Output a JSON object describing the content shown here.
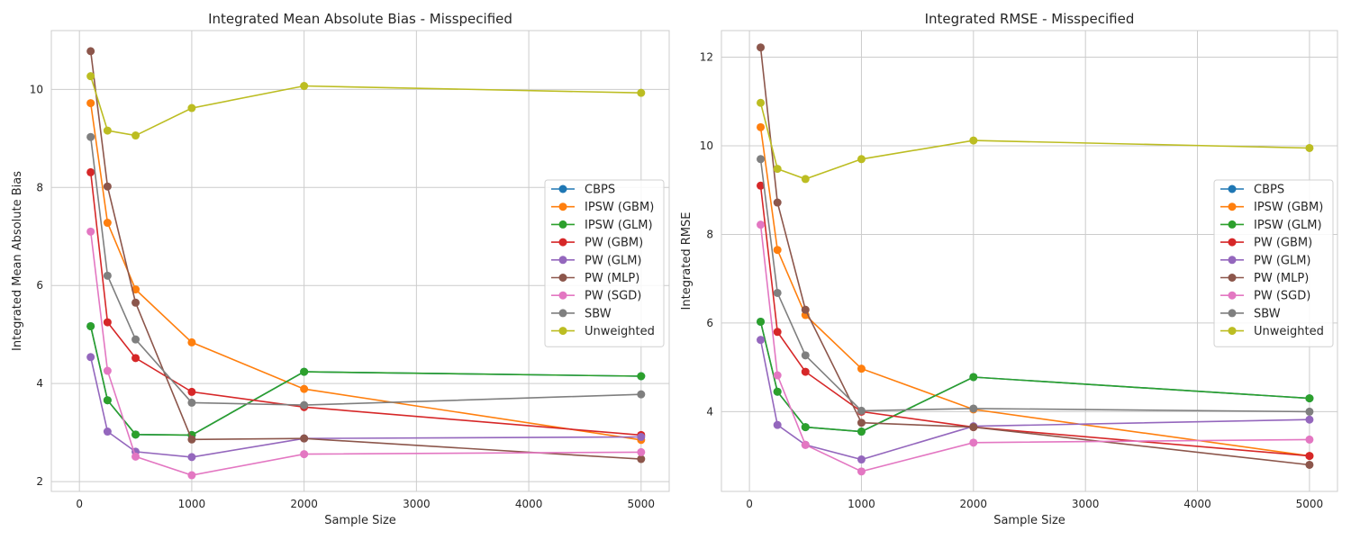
{
  "chart_data": [
    {
      "type": "line",
      "title": "Integrated Mean Absolute Bias - Misspecified",
      "xlabel": "Sample Size",
      "ylabel": "Integrated Mean Absolute Bias",
      "xlim": [
        -250,
        5250
      ],
      "ylim": [
        1.8,
        11.2
      ],
      "xticks": [
        0,
        1000,
        2000,
        3000,
        4000,
        5000
      ],
      "xtick_labels": [
        "0",
        "1000",
        "2000",
        "3000",
        "4000",
        "5000"
      ],
      "yticks": [
        2,
        4,
        6,
        8,
        10
      ],
      "ytick_labels": [
        "2",
        "4",
        "6",
        "8",
        "10"
      ],
      "grid": true,
      "legend_position": "center-right",
      "x": [
        100,
        250,
        500,
        1000,
        2000,
        5000
      ],
      "series": [
        {
          "name": "CBPS",
          "color": "#1f77b4",
          "values": [
            5.17,
            3.66,
            2.96,
            2.95,
            4.24,
            4.15
          ]
        },
        {
          "name": "IPSW (GBM)",
          "color": "#ff7f0e",
          "values": [
            9.72,
            7.28,
            5.92,
            4.84,
            3.89,
            2.85
          ]
        },
        {
          "name": "IPSW (GLM)",
          "color": "#2ca02c",
          "values": [
            5.17,
            3.66,
            2.96,
            2.95,
            4.24,
            4.15
          ]
        },
        {
          "name": "PW (GBM)",
          "color": "#d62728",
          "values": [
            8.31,
            5.25,
            4.52,
            3.83,
            3.52,
            2.95
          ]
        },
        {
          "name": "PW (GLM)",
          "color": "#9467bd",
          "values": [
            4.54,
            3.02,
            2.61,
            2.5,
            2.88,
            2.91
          ]
        },
        {
          "name": "PW (MLP)",
          "color": "#8c564b",
          "values": [
            10.78,
            8.02,
            5.65,
            2.86,
            2.88,
            2.46
          ]
        },
        {
          "name": "PW (SGD)",
          "color": "#e377c2",
          "values": [
            7.1,
            4.26,
            2.51,
            2.13,
            2.56,
            2.6
          ]
        },
        {
          "name": "SBW",
          "color": "#7f7f7f",
          "values": [
            9.03,
            6.2,
            4.9,
            3.61,
            3.56,
            3.78
          ]
        },
        {
          "name": "Unweighted",
          "color": "#bcbd22",
          "values": [
            10.27,
            9.16,
            9.06,
            9.62,
            10.07,
            9.93
          ]
        }
      ]
    },
    {
      "type": "line",
      "title": "Integrated RMSE - Misspecified",
      "xlabel": "Sample Size",
      "ylabel": "Integrated RMSE",
      "xlim": [
        -250,
        5250
      ],
      "ylim": [
        2.2,
        12.6
      ],
      "xticks": [
        0,
        1000,
        2000,
        3000,
        4000,
        5000
      ],
      "xtick_labels": [
        "0",
        "1000",
        "2000",
        "3000",
        "4000",
        "5000"
      ],
      "yticks": [
        4,
        6,
        8,
        10,
        12
      ],
      "ytick_labels": [
        "4",
        "6",
        "8",
        "10",
        "12"
      ],
      "grid": true,
      "legend_position": "center-right",
      "x": [
        100,
        250,
        500,
        1000,
        2000,
        5000
      ],
      "series": [
        {
          "name": "CBPS",
          "color": "#1f77b4",
          "values": [
            6.03,
            4.45,
            3.65,
            3.55,
            4.78,
            4.3
          ]
        },
        {
          "name": "IPSW (GBM)",
          "color": "#ff7f0e",
          "values": [
            10.42,
            7.65,
            6.18,
            4.97,
            4.05,
            3.0
          ]
        },
        {
          "name": "IPSW (GLM)",
          "color": "#2ca02c",
          "values": [
            6.03,
            4.45,
            3.65,
            3.55,
            4.78,
            4.3
          ]
        },
        {
          "name": "PW (GBM)",
          "color": "#d62728",
          "values": [
            9.1,
            5.8,
            4.9,
            4.0,
            3.65,
            3.0
          ]
        },
        {
          "name": "PW (GLM)",
          "color": "#9467bd",
          "values": [
            5.62,
            3.7,
            3.25,
            2.92,
            3.67,
            3.82
          ]
        },
        {
          "name": "PW (MLP)",
          "color": "#8c564b",
          "values": [
            12.22,
            8.72,
            6.3,
            3.75,
            3.65,
            2.8
          ]
        },
        {
          "name": "PW (SGD)",
          "color": "#e377c2",
          "values": [
            8.22,
            4.82,
            3.25,
            2.65,
            3.3,
            3.37
          ]
        },
        {
          "name": "SBW",
          "color": "#7f7f7f",
          "values": [
            9.7,
            6.68,
            5.27,
            4.02,
            4.07,
            4.0
          ]
        },
        {
          "name": "Unweighted",
          "color": "#bcbd22",
          "values": [
            10.97,
            9.48,
            9.25,
            9.7,
            10.12,
            9.95
          ]
        }
      ]
    }
  ]
}
